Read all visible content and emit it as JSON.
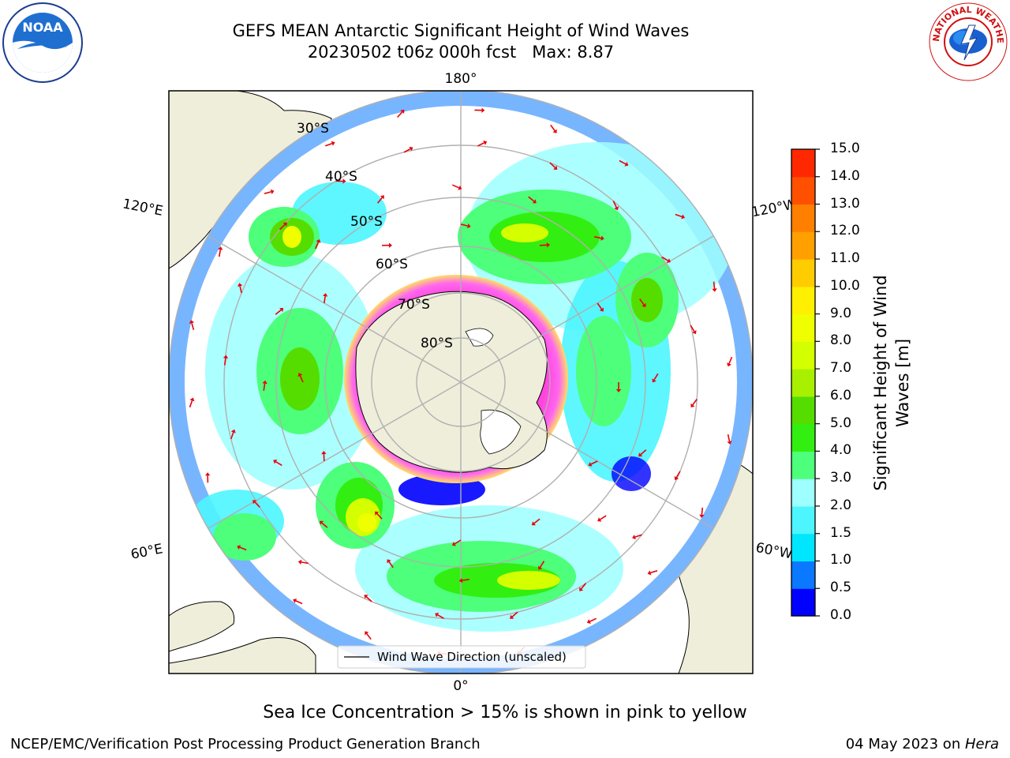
{
  "title_line1": "GEFS MEAN Antarctic Significant Height of Wind Waves",
  "title_line2": "20230502 t06z 000h fcst   Max: 8.87",
  "map": {
    "lon_labels": {
      "top": "180°",
      "bottom": "0°",
      "upper_left": "120°E",
      "upper_right": "120°W",
      "lower_left": "60°E",
      "lower_right": "60°W"
    },
    "lat_labels": [
      "30°S",
      "40°S",
      "50°S",
      "60°S",
      "70°S",
      "80°S"
    ],
    "legend": "Wind Wave Direction (unscaled)",
    "colors": {
      "land": "#efeedb",
      "ocean_none": "#ffffff",
      "grid": "#b0b0b0",
      "arrow": "#e8000b"
    }
  },
  "colorbar": {
    "label_line1": "Significant Height of Wind",
    "label_line2": "Waves [m]",
    "ticks": [
      "0.0",
      "0.5",
      "1.0",
      "1.5",
      "2.0",
      "3.0",
      "4.0",
      "5.0",
      "6.0",
      "7.0",
      "8.0",
      "9.0",
      "10.0",
      "11.0",
      "12.0",
      "13.0",
      "14.0",
      "15.0"
    ],
    "colors": [
      "#0000ff",
      "#0a78ff",
      "#00e6ff",
      "#4df5ff",
      "#9effff",
      "#4dff7a",
      "#33ee11",
      "#55dd00",
      "#a8f000",
      "#d4ff00",
      "#f0ff00",
      "#ffef00",
      "#ffcc00",
      "#ffa000",
      "#ff8000",
      "#ff5000",
      "#ff2800"
    ]
  },
  "note": "Sea Ice Concentration > 15% is shown in pink to yellow",
  "footer_left": "NCEP/EMC/Verification Post Processing Product Generation Branch",
  "footer_right_date": "04 May 2023 on ",
  "footer_right_host": "Hera",
  "logos": {
    "noaa": "NOAA",
    "nws": "NATIONAL WEATHER SERVICE"
  }
}
